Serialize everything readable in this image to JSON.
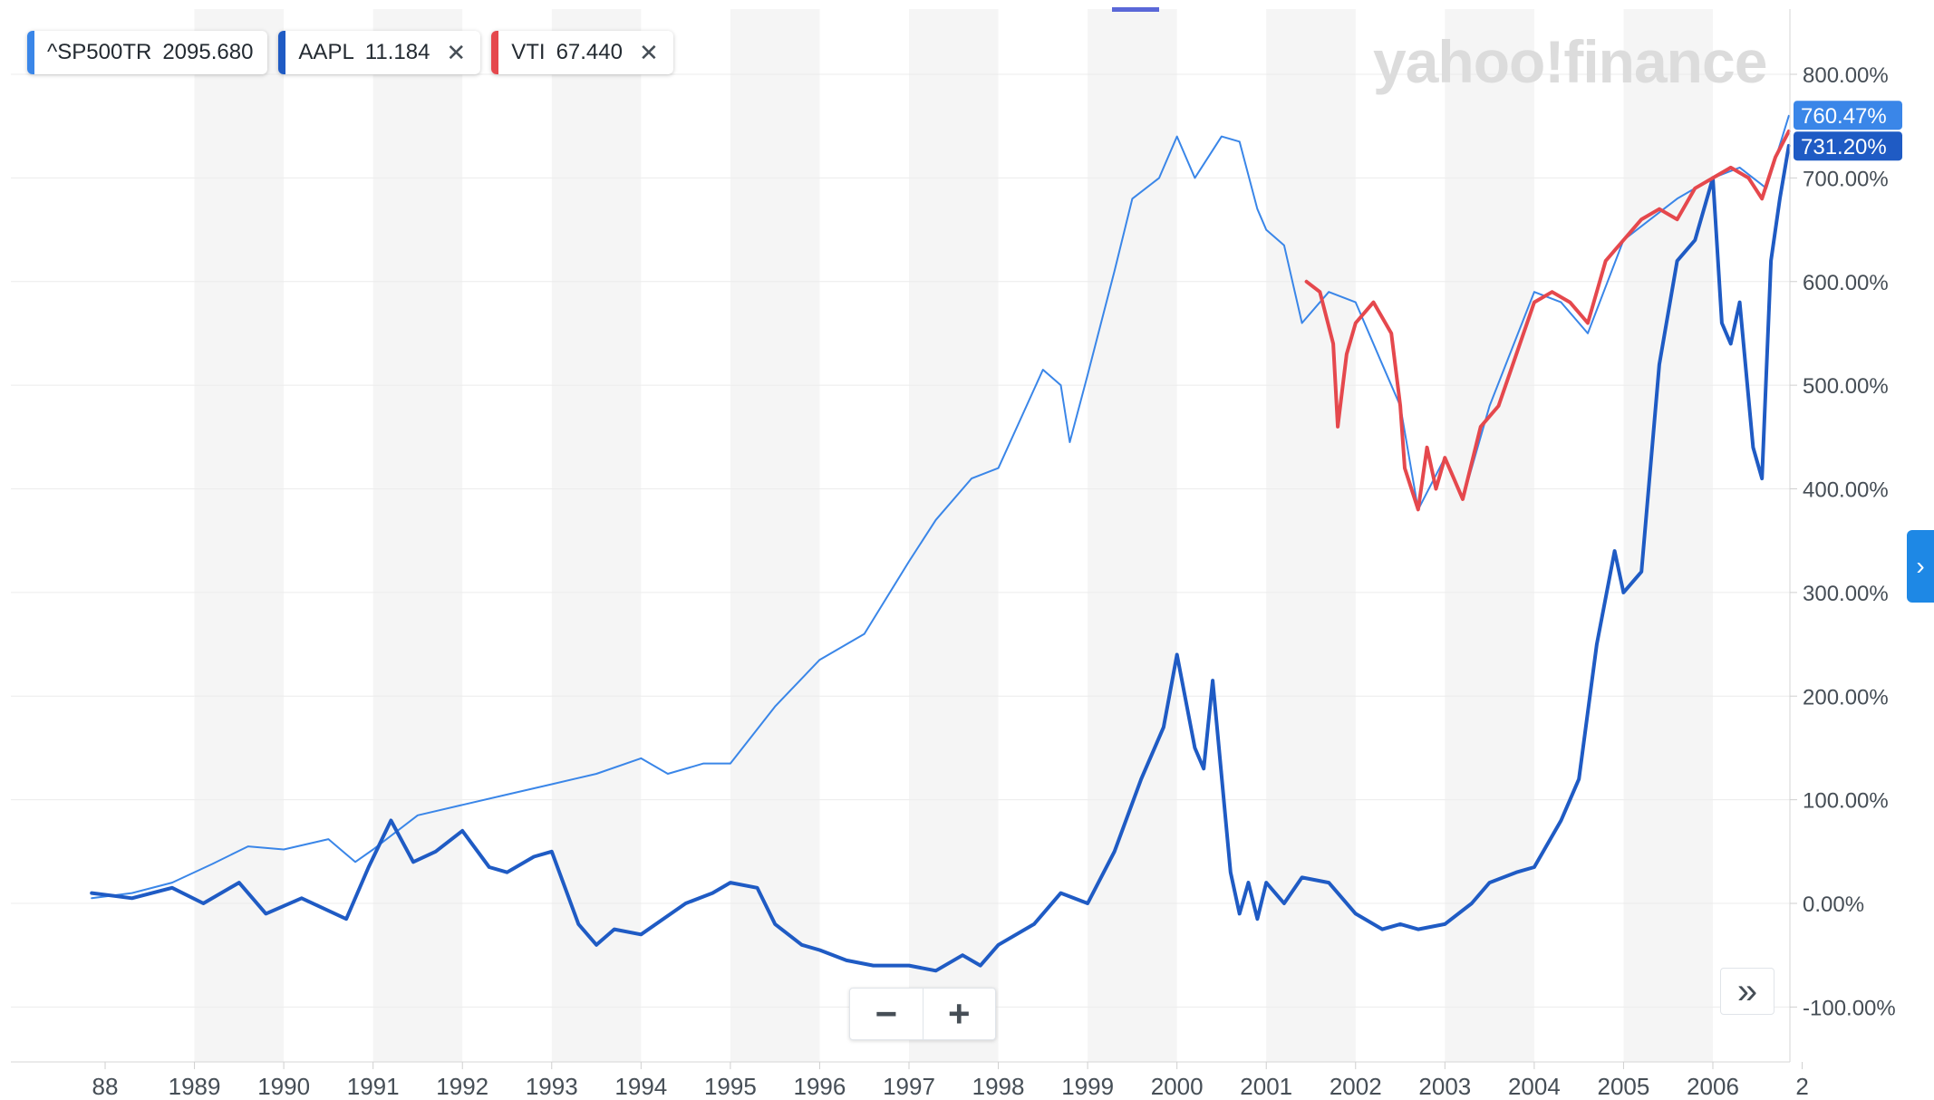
{
  "legend": [
    {
      "symbol": "^SP500TR",
      "value": "2095.680",
      "color": "#3a86e8",
      "removable": false
    },
    {
      "symbol": "AAPL",
      "value": "11.184",
      "color": "#1f5bc4",
      "removable": true
    },
    {
      "symbol": "VTI",
      "value": "67.440",
      "color": "#e5484d",
      "removable": true
    }
  ],
  "watermark": "yahoo!finance",
  "controls": {
    "zoom_out": "−",
    "zoom_in": "+",
    "expand": "»",
    "side": "›"
  },
  "chart_data": {
    "type": "line",
    "y_unit": "%",
    "ylim": [
      -150,
      850
    ],
    "y_ticks": [
      "800.00%",
      "700.00%",
      "600.00%",
      "500.00%",
      "400.00%",
      "300.00%",
      "200.00%",
      "100.00%",
      "0.00%",
      "-100.00%"
    ],
    "y_tick_values": [
      800,
      700,
      600,
      500,
      400,
      300,
      200,
      100,
      0,
      -100
    ],
    "x_ticks": [
      "88",
      "1989",
      "1990",
      "1991",
      "1992",
      "1993",
      "1994",
      "1995",
      "1996",
      "1997",
      "1998",
      "1999",
      "2000",
      "2001",
      "2002",
      "2003",
      "2004",
      "2005",
      "2006",
      "2"
    ],
    "x_tick_positions": [
      1988,
      1989,
      1990,
      1991,
      1992,
      1993,
      1994,
      1995,
      1996,
      1997,
      1998,
      1999,
      2000,
      2001,
      2002,
      2003,
      2004,
      2005,
      2006,
      2007
    ],
    "xlim": [
      1987.85,
      2006.85
    ],
    "last_value_labels": [
      {
        "text": "760.47%",
        "value": 760.47,
        "color": "#3a86e8"
      },
      {
        "text": "731.20%",
        "value": 731.2,
        "color": "#1f5bc4"
      }
    ],
    "series": [
      {
        "symbol": "^SP500TR",
        "color": "#3a86e8",
        "x": [
          1987.85,
          1988.3,
          1988.75,
          1989.2,
          1989.6,
          1990.0,
          1990.5,
          1990.8,
          1991.0,
          1991.5,
          1992.0,
          1992.5,
          1993.0,
          1993.5,
          1994.0,
          1994.3,
          1994.7,
          1995.0,
          1995.5,
          1996.0,
          1996.5,
          1997.0,
          1997.3,
          1997.7,
          1998.0,
          1998.5,
          1998.7,
          1998.8,
          1999.0,
          1999.3,
          1999.5,
          1999.8,
          2000.0,
          2000.2,
          2000.5,
          2000.7,
          2000.9,
          2001.0,
          2001.2,
          2001.4,
          2001.7,
          2002.0,
          2002.3,
          2002.5,
          2002.7,
          2003.0,
          2003.2,
          2003.5,
          2004.0,
          2004.3,
          2004.6,
          2005.0,
          2005.3,
          2005.6,
          2006.0,
          2006.3,
          2006.6,
          2006.85
        ],
        "y": [
          5,
          10,
          20,
          38,
          55,
          52,
          62,
          40,
          52,
          85,
          95,
          105,
          115,
          125,
          140,
          125,
          135,
          135,
          190,
          235,
          260,
          330,
          370,
          410,
          420,
          515,
          500,
          445,
          510,
          610,
          680,
          700,
          740,
          700,
          740,
          735,
          670,
          650,
          635,
          560,
          590,
          580,
          520,
          480,
          380,
          430,
          390,
          480,
          590,
          580,
          550,
          640,
          660,
          680,
          700,
          710,
          690,
          760
        ]
      },
      {
        "symbol": "AAPL",
        "color": "#1f5bc4",
        "x": [
          1987.85,
          1988.3,
          1988.75,
          1989.1,
          1989.5,
          1989.8,
          1990.2,
          1990.7,
          1990.95,
          1991.2,
          1991.45,
          1991.7,
          1992.0,
          1992.3,
          1992.5,
          1992.8,
          1993.0,
          1993.3,
          1993.5,
          1993.7,
          1994.0,
          1994.5,
          1994.8,
          1995.0,
          1995.3,
          1995.5,
          1995.8,
          1996.0,
          1996.3,
          1996.6,
          1997.0,
          1997.3,
          1997.6,
          1997.8,
          1998.0,
          1998.4,
          1998.7,
          1999.0,
          1999.3,
          1999.6,
          1999.85,
          2000.0,
          2000.2,
          2000.3,
          2000.4,
          2000.6,
          2000.7,
          2000.8,
          2000.9,
          2001.0,
          2001.2,
          2001.4,
          2001.7,
          2002.0,
          2002.3,
          2002.5,
          2002.7,
          2003.0,
          2003.3,
          2003.5,
          2003.8,
          2004.0,
          2004.3,
          2004.5,
          2004.7,
          2004.9,
          2005.0,
          2005.2,
          2005.4,
          2005.6,
          2005.8,
          2006.0,
          2006.1,
          2006.2,
          2006.3,
          2006.45,
          2006.55,
          2006.65,
          2006.75,
          2006.85
        ],
        "y": [
          10,
          5,
          15,
          0,
          20,
          -10,
          5,
          -15,
          35,
          80,
          40,
          50,
          70,
          35,
          30,
          45,
          50,
          -20,
          -40,
          -25,
          -30,
          0,
          10,
          20,
          15,
          -20,
          -40,
          -45,
          -55,
          -60,
          -60,
          -65,
          -50,
          -60,
          -40,
          -20,
          10,
          0,
          50,
          120,
          170,
          240,
          150,
          130,
          215,
          30,
          -10,
          20,
          -15,
          20,
          0,
          25,
          20,
          -10,
          -25,
          -20,
          -25,
          -20,
          0,
          20,
          30,
          35,
          80,
          120,
          250,
          340,
          300,
          320,
          520,
          620,
          640,
          700,
          560,
          540,
          580,
          440,
          410,
          620,
          680,
          731
        ]
      },
      {
        "symbol": "VTI",
        "color": "#e5484d",
        "x": [
          2001.45,
          2001.6,
          2001.75,
          2001.8,
          2001.9,
          2002.0,
          2002.2,
          2002.4,
          2002.5,
          2002.55,
          2002.7,
          2002.8,
          2002.9,
          2003.0,
          2003.1,
          2003.2,
          2003.4,
          2003.6,
          2003.8,
          2004.0,
          2004.2,
          2004.4,
          2004.6,
          2004.8,
          2005.0,
          2005.2,
          2005.4,
          2005.6,
          2005.8,
          2006.0,
          2006.2,
          2006.4,
          2006.55,
          2006.7,
          2006.85
        ],
        "y": [
          600,
          590,
          540,
          460,
          530,
          560,
          580,
          550,
          480,
          420,
          380,
          440,
          400,
          430,
          410,
          390,
          460,
          480,
          530,
          580,
          590,
          580,
          560,
          620,
          640,
          660,
          670,
          660,
          690,
          700,
          710,
          700,
          680,
          720,
          745
        ]
      }
    ]
  }
}
